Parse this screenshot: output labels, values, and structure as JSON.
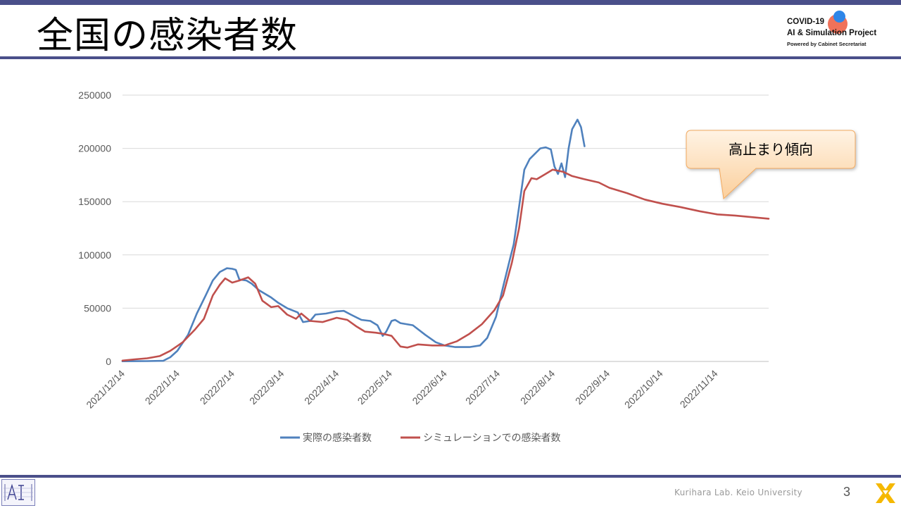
{
  "slide": {
    "title": "全国の感染者数",
    "page_number": "3",
    "footer": "Kurihara Lab. Keio University",
    "logo": {
      "line1": "COVID-19",
      "line2": "AI & Simulation Project",
      "line3": "Powered by Cabinet Secretariat"
    },
    "callout": "高止まり傾向",
    "colors": {
      "accent_bar": "#4a4f8a",
      "logo_red": "#f0725a",
      "logo_blue": "#2e86e8",
      "corner_logo": "#f5b800"
    },
    "icons": [
      "ai-lab-logo-icon",
      "x-mark-logo-icon"
    ]
  },
  "chart_data": {
    "type": "line",
    "ylim": [
      0,
      250000
    ],
    "yticks": [
      "0",
      "50000",
      "100000",
      "150000",
      "200000",
      "250000"
    ],
    "xlim": [
      "2021/12/14",
      "2022/12/14"
    ],
    "x_tick_labels": [
      "2021/12/14",
      "2022/1/14",
      "2022/2/14",
      "2022/3/14",
      "2022/4/14",
      "2022/5/14",
      "2022/6/14",
      "2022/7/14",
      "2022/8/14",
      "2022/9/14",
      "2022/10/14",
      "2022/11/14"
    ],
    "grid": "horizontal",
    "legend_position": "bottom",
    "series": [
      {
        "name": "実際の感染者数",
        "color": "#4f81bd",
        "points": [
          [
            "2021/12/14",
            200
          ],
          [
            "2021/12/28",
            300
          ],
          [
            "2022/1/6",
            600
          ],
          [
            "2022/1/10",
            4000
          ],
          [
            "2022/1/14",
            10000
          ],
          [
            "2022/1/20",
            25000
          ],
          [
            "2022/1/25",
            45000
          ],
          [
            "2022/1/30",
            62000
          ],
          [
            "2022/2/3",
            76000
          ],
          [
            "2022/2/7",
            84000
          ],
          [
            "2022/2/11",
            87500
          ],
          [
            "2022/2/14",
            87000
          ],
          [
            "2022/2/16",
            86000
          ],
          [
            "2022/2/18",
            77000
          ],
          [
            "2022/2/22",
            76000
          ],
          [
            "2022/2/25",
            73000
          ],
          [
            "2022/3/1",
            67000
          ],
          [
            "2022/3/4",
            64000
          ],
          [
            "2022/3/8",
            60000
          ],
          [
            "2022/3/12",
            55000
          ],
          [
            "2022/3/17",
            50000
          ],
          [
            "2022/3/23",
            46000
          ],
          [
            "2022/3/26",
            37000
          ],
          [
            "2022/3/30",
            38000
          ],
          [
            "2022/4/2",
            44000
          ],
          [
            "2022/4/8",
            45000
          ],
          [
            "2022/4/14",
            47000
          ],
          [
            "2022/4/18",
            47500
          ],
          [
            "2022/4/22",
            44000
          ],
          [
            "2022/4/28",
            39000
          ],
          [
            "2022/5/3",
            38000
          ],
          [
            "2022/5/7",
            34000
          ],
          [
            "2022/5/10",
            24000
          ],
          [
            "2022/5/12",
            28000
          ],
          [
            "2022/5/15",
            38000
          ],
          [
            "2022/5/17",
            39000
          ],
          [
            "2022/5/20",
            36000
          ],
          [
            "2022/5/27",
            34000
          ],
          [
            "2022/6/3",
            25000
          ],
          [
            "2022/6/9",
            18000
          ],
          [
            "2022/6/14",
            15000
          ],
          [
            "2022/6/20",
            13500
          ],
          [
            "2022/6/28",
            13500
          ],
          [
            "2022/7/4",
            15000
          ],
          [
            "2022/7/8",
            22000
          ],
          [
            "2022/7/13",
            42000
          ],
          [
            "2022/7/17",
            70000
          ],
          [
            "2022/7/21",
            97000
          ],
          [
            "2022/7/23",
            110000
          ],
          [
            "2022/7/26",
            145000
          ],
          [
            "2022/7/29",
            180000
          ],
          [
            "2022/8/1",
            190000
          ],
          [
            "2022/8/4",
            195000
          ],
          [
            "2022/8/7",
            200000
          ],
          [
            "2022/8/10",
            201000
          ],
          [
            "2022/8/13",
            199000
          ],
          [
            "2022/8/15",
            183000
          ],
          [
            "2022/8/17",
            176000
          ],
          [
            "2022/8/19",
            186000
          ],
          [
            "2022/8/21",
            173000
          ],
          [
            "2022/8/23",
            200000
          ],
          [
            "2022/8/25",
            218000
          ],
          [
            "2022/8/28",
            227000
          ],
          [
            "2022/8/30",
            220000
          ],
          [
            "2022/9/1",
            202000
          ]
        ]
      },
      {
        "name": "シミュレーションでの感染者数",
        "color": "#c0504d",
        "points": [
          [
            "2021/12/14",
            800
          ],
          [
            "2021/12/21",
            2000
          ],
          [
            "2021/12/28",
            3000
          ],
          [
            "2022/1/4",
            5000
          ],
          [
            "2022/1/10",
            10000
          ],
          [
            "2022/1/17",
            18000
          ],
          [
            "2022/1/24",
            30000
          ],
          [
            "2022/1/29",
            40000
          ],
          [
            "2022/2/3",
            62000
          ],
          [
            "2022/2/7",
            72000
          ],
          [
            "2022/2/10",
            78000
          ],
          [
            "2022/2/14",
            74000
          ],
          [
            "2022/2/18",
            76000
          ],
          [
            "2022/2/23",
            79000
          ],
          [
            "2022/2/27",
            73000
          ],
          [
            "2022/3/3",
            57000
          ],
          [
            "2022/3/8",
            51000
          ],
          [
            "2022/3/12",
            52000
          ],
          [
            "2022/3/17",
            44000
          ],
          [
            "2022/3/22",
            40000
          ],
          [
            "2022/3/25",
            45000
          ],
          [
            "2022/3/30",
            38000
          ],
          [
            "2022/4/6",
            37000
          ],
          [
            "2022/4/14",
            41000
          ],
          [
            "2022/4/20",
            39000
          ],
          [
            "2022/4/25",
            33000
          ],
          [
            "2022/4/30",
            28000
          ],
          [
            "2022/5/6",
            27000
          ],
          [
            "2022/5/10",
            26000
          ],
          [
            "2022/5/15",
            24000
          ],
          [
            "2022/5/20",
            14000
          ],
          [
            "2022/5/24",
            13000
          ],
          [
            "2022/5/30",
            16000
          ],
          [
            "2022/6/7",
            15000
          ],
          [
            "2022/6/14",
            15000
          ],
          [
            "2022/6/21",
            19000
          ],
          [
            "2022/6/28",
            26000
          ],
          [
            "2022/7/5",
            35000
          ],
          [
            "2022/7/12",
            48000
          ],
          [
            "2022/7/17",
            62000
          ],
          [
            "2022/7/22",
            93000
          ],
          [
            "2022/7/26",
            125000
          ],
          [
            "2022/7/29",
            160000
          ],
          [
            "2022/8/2",
            172000
          ],
          [
            "2022/8/5",
            171000
          ],
          [
            "2022/8/10",
            176000
          ],
          [
            "2022/8/14",
            180000
          ],
          [
            "2022/8/20",
            178000
          ],
          [
            "2022/8/25",
            174000
          ],
          [
            "2022/9/1",
            171000
          ],
          [
            "2022/9/9",
            168000
          ],
          [
            "2022/9/15",
            163000
          ],
          [
            "2022/9/25",
            158000
          ],
          [
            "2022/10/5",
            152000
          ],
          [
            "2022/10/15",
            148000
          ],
          [
            "2022/10/25",
            145000
          ],
          [
            "2022/11/5",
            141000
          ],
          [
            "2022/11/15",
            138000
          ],
          [
            "2022/11/25",
            137000
          ],
          [
            "2022/12/14",
            134000
          ]
        ]
      }
    ]
  }
}
